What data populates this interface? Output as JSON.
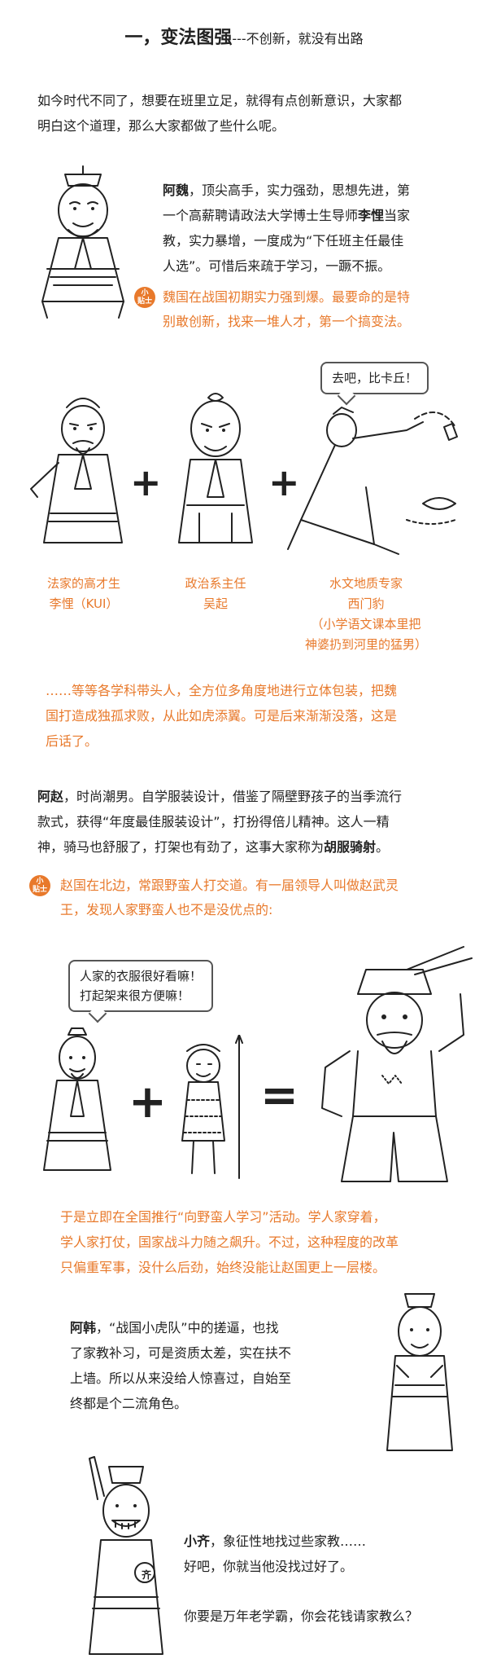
{
  "header": {
    "title_main": "一，变法图强",
    "title_sub": "---不创新，就没有出路"
  },
  "intro": {
    "line1": "如今时代不同了，想要在班里立足，就得有点创新意识，大家都",
    "line2": "明白这个道理，那么大家都做了些什么呢。"
  },
  "wei": {
    "name": "阿魏",
    "line1_rest": "，顶尖高手，实力强劲，思想先进，第",
    "line2a": "一个高薪聘请政法大学博士生导师",
    "teacher": "李悝",
    "line2b": "当家",
    "line3": "教，实力暴增，一度成为“下任班主任最佳",
    "line4": "人选”。可惜后来疏于学习，一蹶不振。",
    "tip_line1": "魏国在战国初期实力强到爆。最要命的是特",
    "tip_line2": "别敢创新，找来一堆人才，第一个搞变法。"
  },
  "tip_badge": {
    "top": "小",
    "bottom": "贴士"
  },
  "scene1": {
    "bubble": "去吧，比卡丘！",
    "plus": "+",
    "cap1_l1": "法家的高才生",
    "cap1_l2": "李悝（KUI）",
    "cap2_l1": "政治系主任",
    "cap2_l2": "吴起",
    "cap3_l1": "水文地质专家",
    "cap3_l2": "西门豹",
    "cap3_l3": "（小学语文课本里把",
    "cap3_l4": "神婆扔到河里的猛男）"
  },
  "wei_end": {
    "line1": "……等等各学科带头人，全方位多角度地进行立体包装，把魏",
    "line2": "国打造成独孤求败，从此如虎添翼。可是后来渐渐没落，这是",
    "line3": "后话了。"
  },
  "zhao": {
    "name": "阿赵",
    "line1_rest": "，时尚潮男。自学服装设计，借鉴了隔壁野孩子的当季流行",
    "line2": "款式，获得“年度最佳服装设计”，打扮得倍儿精神。这人一精",
    "line3a": "神，骑马也舒服了，打架也有劲了，这事大家称为",
    "term": "胡服骑射",
    "line3b": "。",
    "tip_line1": "赵国在北边，常跟野蛮人打交道。有一届领导人叫做赵武灵",
    "tip_line2": "王，发现人家野蛮人也不是没优点的:",
    "bubble_l1": "人家的衣服很好看嘛！",
    "bubble_l2": "打起架来很方便嘛！",
    "equals": "=",
    "end_l1": "于是立即在全国推行“向野蛮人学习”活动。学人家穿着，",
    "end_l2": "学人家打仗，国家战斗力随之飙升。不过，这种程度的改革",
    "end_l3": "只偏重军事，没什么后劲，始终没能让赵国更上一层楼。"
  },
  "han": {
    "name": "阿韩",
    "line1_rest": "，“战国小虎队”中的搓逼，也找",
    "line2": "了家教补习，可是资质太差，实在扶不",
    "line3": "上墙。所以从来没给人惊喜过，自始至",
    "line4": "终都是个二流角色。"
  },
  "qi": {
    "name": "小齐",
    "line1_rest": "，象征性地找过些家教……",
    "line2": "好吧，你就当他没找过好了。",
    "question": "你要是万年老学霸，你会花钱请家教么？",
    "badge": "齐"
  }
}
